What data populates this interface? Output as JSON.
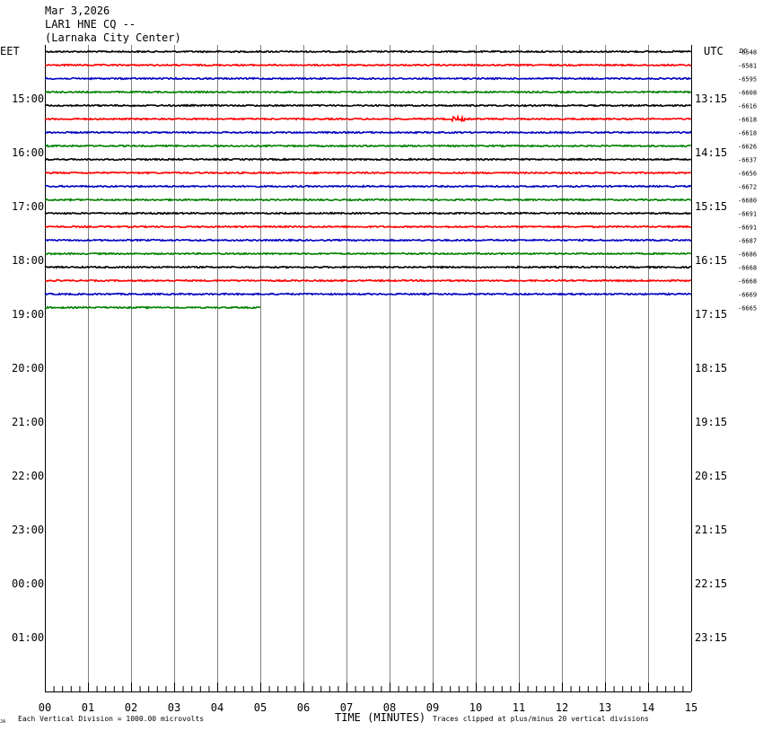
{
  "header": {
    "date": "Mar 3,2026",
    "station": "LAR1 HNE CQ --",
    "location": "(Larnaka City Center)"
  },
  "left_axis_label": "EET",
  "right_axis_label": "UTC",
  "dc_label": "DC",
  "footer": {
    "xlabel": "TIME (MINUTES)",
    "scale_note": "Each Vertical Division = 1000.00 microvolts",
    "clip_note": "Traces clipped at plus/minus 20 vertical divisions",
    "corner_mark": "JA"
  },
  "colors": {
    "trace_cycle": [
      "#000000",
      "#ff0000",
      "#0000c0",
      "#008000"
    ],
    "grid": "#808080"
  },
  "chart_data": {
    "type": "line",
    "title": "Mar 3,2026 LAR1 HNE CQ -- (Larnaka City Center)",
    "xlabel": "TIME (MINUTES)",
    "xlim": [
      0,
      15
    ],
    "x_ticks": [
      "00",
      "01",
      "02",
      "03",
      "04",
      "05",
      "06",
      "07",
      "08",
      "09",
      "10",
      "11",
      "12",
      "13",
      "14",
      "15"
    ],
    "hour_rows": 12,
    "left_hour_labels": [
      "15:00",
      "16:00",
      "17:00",
      "18:00",
      "19:00",
      "20:00",
      "21:00",
      "22:00",
      "23:00",
      "00:00",
      "01:00"
    ],
    "right_hour_labels": [
      "13:15",
      "14:15",
      "15:15",
      "16:15",
      "17:15",
      "18:15",
      "19:15",
      "20:15",
      "21:15",
      "22:15",
      "23:15"
    ],
    "trace_dc_offsets": [
      -6548,
      -6581,
      -6595,
      -6608,
      -6616,
      -6618,
      -6618,
      -6626,
      -6637,
      -6656,
      -6672,
      -6680,
      -6691,
      -6691,
      -6687,
      -6686,
      -6668,
      -6668,
      -6669,
      -6665
    ],
    "trace_end_minutes": [
      15,
      15,
      15,
      15,
      15,
      15,
      15,
      15,
      15,
      15,
      15,
      15,
      15,
      15,
      15,
      15,
      15,
      15,
      15,
      5
    ],
    "events": [
      {
        "trace": 5,
        "minute": 9.6,
        "note": "small burst"
      }
    ],
    "grid": true
  }
}
